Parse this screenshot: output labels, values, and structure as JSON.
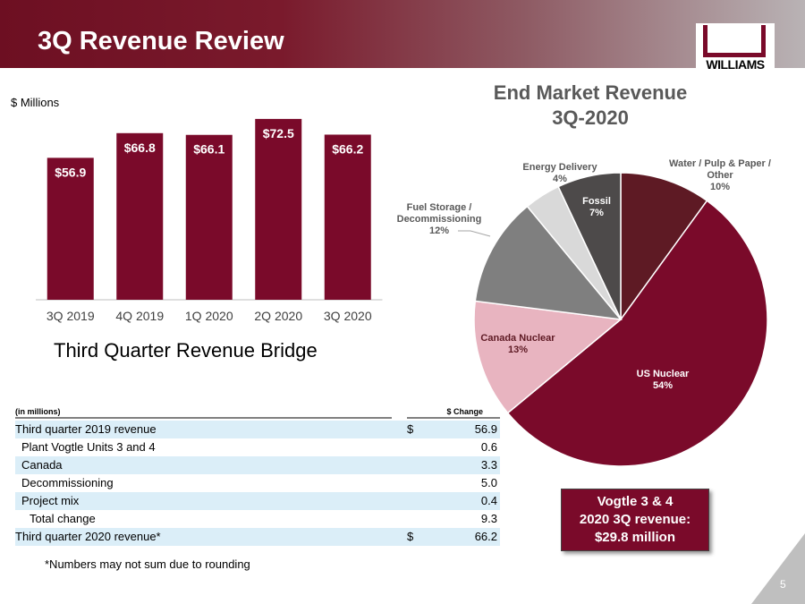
{
  "header": {
    "title": "3Q Revenue Review",
    "logo": "WILLIAMS"
  },
  "chart_data": [
    {
      "type": "bar",
      "y_label": "$ Millions",
      "categories": [
        "3Q 2019",
        "4Q 2019",
        "1Q 2020",
        "2Q 2020",
        "3Q 2020"
      ],
      "values": [
        56.9,
        66.8,
        66.1,
        72.5,
        66.2
      ],
      "value_labels": [
        "$56.9",
        "$66.8",
        "$66.1",
        "$72.5",
        "$66.2"
      ],
      "color": "#7a0a2a",
      "ylim": [
        0,
        80
      ]
    },
    {
      "type": "pie",
      "title": "End Market Revenue",
      "subtitle": "3Q-2020",
      "categories": [
        "Water / Pulp & Paper / Other",
        "US Nuclear",
        "Canada Nuclear",
        "Fuel Storage / Decommissioning",
        "Energy Delivery",
        "Fossil"
      ],
      "values": [
        10,
        54,
        13,
        12,
        4,
        7
      ],
      "value_labels": [
        "10%",
        "54%",
        "13%",
        "12%",
        "4%",
        "7%"
      ],
      "colors": [
        "#5e1a24",
        "#7a0a2a",
        "#e8b4c0",
        "#7f7f7f",
        "#d9d9d9",
        "#4d4a4a"
      ]
    }
  ],
  "bridge": {
    "title": "Third Quarter Revenue Bridge",
    "table": {
      "header": [
        "(in millions)",
        "$ Change"
      ],
      "rows": [
        [
          "Third quarter 2019 revenue",
          "$",
          "56.9"
        ],
        [
          "Plant Vogtle Units 3 and 4",
          "0.6"
        ],
        [
          "Canada",
          "3.3"
        ],
        [
          "Decommissioning",
          "5.0"
        ],
        [
          "Project mix",
          "0.4"
        ],
        [
          "Total change",
          "9.3"
        ],
        [
          "Third quarter 2020 revenue*",
          "$",
          "66.2"
        ]
      ]
    },
    "footnote": "*Numbers may not sum due to rounding"
  },
  "callout": {
    "lines": [
      "Vogtle 3 & 4",
      "2020 3Q revenue:",
      "$29.8 million"
    ]
  },
  "page_number": "5"
}
